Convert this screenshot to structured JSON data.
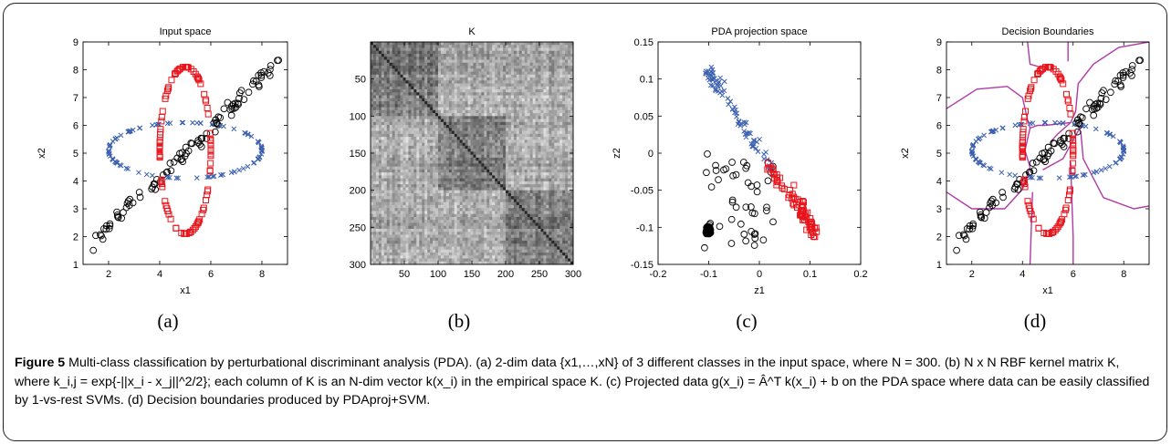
{
  "panels": [
    {
      "label": "(a)"
    },
    {
      "label": "(b)"
    },
    {
      "label": "(c)"
    },
    {
      "label": "(d)"
    }
  ],
  "caption": {
    "figure_label": "Figure 5",
    "text": " Multi-class classification by perturbational discriminant analysis (PDA). (a) 2-dim data {x1,…,xN} of 3 different classes in the input space, where N = 300. (b) N x N RBF kernel matrix K, where k_i,j = exp{-||x_i - x_j||^2/2}; each column of K is an N-dim vector k(x_i) in the empirical space K. (c) Projected data g(x_i) = Â^T k(x_i) + b on the PDA space where data can be easily classified by 1-vs-rest SVMs. (d) Decision boundaries produced by PDAproj+SVM."
  },
  "chart_data": [
    {
      "type": "scatter",
      "title": "Input space",
      "xlabel": "x1",
      "ylabel": "x2",
      "xlim": [
        1,
        9
      ],
      "ylim": [
        1,
        9
      ],
      "xticks": [
        2,
        4,
        6,
        8
      ],
      "yticks": [
        1,
        2,
        3,
        4,
        5,
        6,
        7,
        8,
        9
      ],
      "series": [
        {
          "marker": "x",
          "color": "#3a5fb0",
          "shape": "horizontal ellipse",
          "center": [
            5,
            5.1
          ],
          "radius": [
            3,
            1
          ]
        },
        {
          "marker": "square",
          "color": "#e8141b",
          "shape": "vertical ellipse",
          "center": [
            5,
            5.1
          ],
          "radius": [
            1,
            3
          ]
        },
        {
          "marker": "circle",
          "color": "#000000",
          "shape": "diagonal band",
          "from": [
            1.3,
            1.6
          ],
          "to": [
            8.7,
            8.4
          ]
        }
      ]
    },
    {
      "type": "heatmap",
      "title": "K",
      "xlim": [
        0,
        300
      ],
      "ylim": [
        0,
        300
      ],
      "xticks": [
        50,
        100,
        150,
        200,
        250,
        300
      ],
      "yticks": [
        50,
        100,
        150,
        200,
        250,
        300
      ],
      "colormap": "gray",
      "block_boundaries": [
        100,
        200
      ]
    },
    {
      "type": "scatter",
      "title": "PDA projection space",
      "xlabel": "z1",
      "ylabel": "z2",
      "xlim": [
        -0.2,
        0.2
      ],
      "ylim": [
        -0.15,
        0.15
      ],
      "xticks": [
        -0.2,
        -0.1,
        0,
        0.1,
        0.2
      ],
      "yticks": [
        -0.15,
        -0.1,
        -0.05,
        0,
        0.05,
        0.1,
        0.15
      ],
      "xtick_labels": [
        "-0.2",
        "-0.1",
        "0",
        "0.1",
        "0.2"
      ],
      "ytick_labels": [
        "-0.15",
        "-0.1",
        "-0.05",
        "0",
        "0.05",
        "0.1",
        "0.15"
      ],
      "series": [
        {
          "marker": "x",
          "color": "#3a5fb0",
          "from": [
            -0.1,
            0.115
          ],
          "to": [
            0.02,
            -0.02
          ]
        },
        {
          "marker": "square",
          "color": "#e8141b",
          "from": [
            0.02,
            -0.02
          ],
          "to": [
            0.11,
            -0.105
          ]
        },
        {
          "marker": "circle",
          "color": "#000000",
          "cluster": [
            -0.1,
            -0.105
          ]
        }
      ]
    },
    {
      "type": "scatter",
      "title": "Decision Boundaries",
      "xlabel": "x1",
      "ylabel": "x2",
      "xlim": [
        1,
        9
      ],
      "ylim": [
        1,
        9
      ],
      "xticks": [
        2,
        4,
        6,
        8
      ],
      "yticks": [
        1,
        2,
        3,
        4,
        5,
        6,
        7,
        8,
        9
      ],
      "boundary_color": "#b03aa8"
    }
  ]
}
